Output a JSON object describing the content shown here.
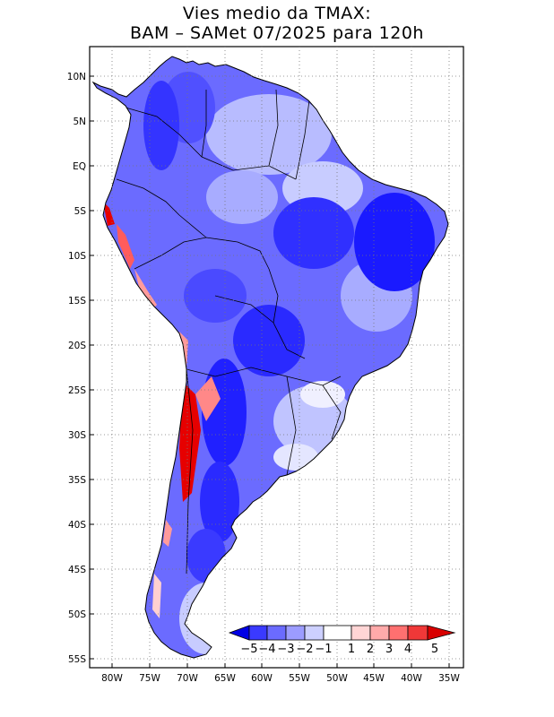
{
  "title": {
    "line1": "Vies medio da TMAX:",
    "line2": "BAM – SAMet 07/2025  para 120h"
  },
  "map": {
    "lat_labels": [
      "10N",
      "5N",
      "EQ",
      "5S",
      "10S",
      "15S",
      "20S",
      "25S",
      "30S",
      "35S",
      "40S",
      "45S",
      "50S",
      "55S"
    ],
    "lon_labels": [
      "80W",
      "75W",
      "70W",
      "65W",
      "60W",
      "55W",
      "50W",
      "45W",
      "40W",
      "35W"
    ],
    "extent": {
      "lon_min": -83,
      "lon_max": -34,
      "lat_min": -56,
      "lat_max": 13.5
    }
  },
  "colorbar": {
    "labels": [
      "−5",
      "−4",
      "−3",
      "−2",
      "−1",
      "1",
      "2",
      "3",
      "4",
      "5"
    ],
    "colors": [
      "#0000e6",
      "#3a3aff",
      "#6b6bff",
      "#9c9cff",
      "#cdd0ff",
      "#ffffff",
      "#ffd5d5",
      "#ffaaaa",
      "#ff7070",
      "#f03838",
      "#d80000"
    ]
  },
  "colors": {
    "strong_blue": "#1a1aff",
    "medium_blue": "#5a5aff",
    "light_blue": "#a8acff",
    "pale_blue": "#d4d8ff",
    "red": "#e60000",
    "pink": "#ff9b9b"
  }
}
